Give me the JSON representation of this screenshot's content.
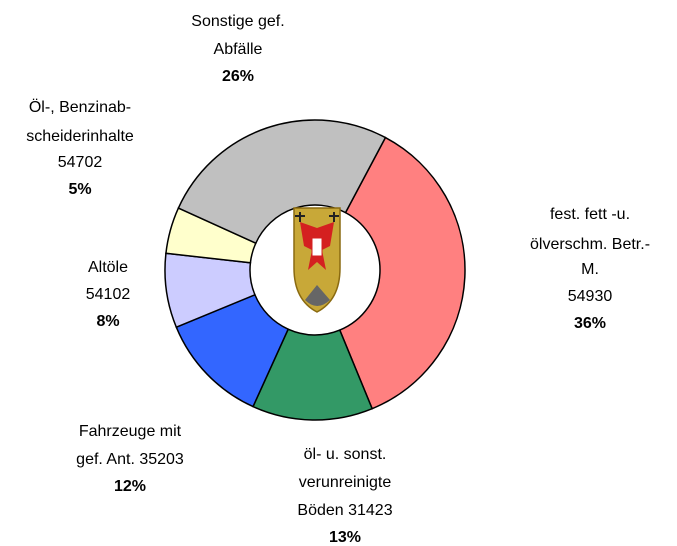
{
  "chart_data": {
    "type": "donut",
    "categories": [
      [
        "fest. fett -u.",
        "ölverschm. Betr.-",
        "M.",
        "54930"
      ],
      [
        "öl- u. sonst.",
        "verunreinigte",
        "Böden 31423"
      ],
      [
        "Fahrzeuge mit",
        "gef. Ant. 35203"
      ],
      [
        "Altöle",
        "54102"
      ],
      [
        "Öl-, Benzinab-",
        "scheiderinhalte",
        "54702"
      ],
      [
        "Sonstige gef.",
        "Abfälle"
      ]
    ],
    "values": [
      36,
      13,
      12,
      8,
      5,
      26
    ],
    "value_labels": [
      "36%",
      "13%",
      "12%",
      "8%",
      "5%",
      "26%"
    ],
    "colors": [
      "#ff8080",
      "#339966",
      "#3366ff",
      "#ccccff",
      "#ffffcc",
      "#c0c0c0"
    ]
  }
}
